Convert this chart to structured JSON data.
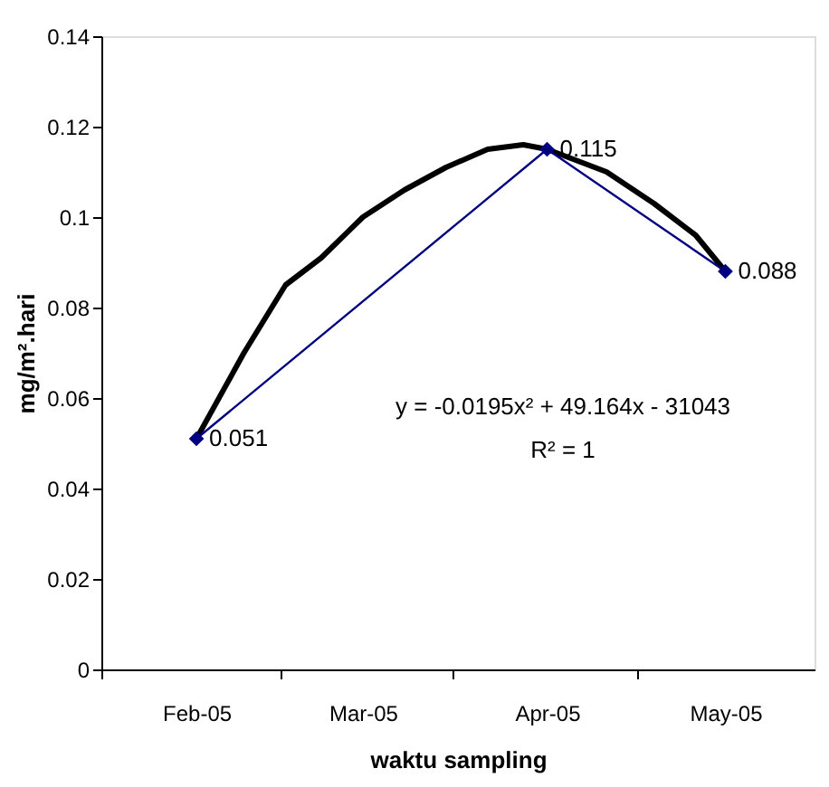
{
  "chart_data": {
    "type": "line",
    "xlabel": "waktu sampling",
    "ylabel": "mg/m².hari",
    "ylim": [
      0,
      0.14
    ],
    "yticks": [
      0,
      0.02,
      0.04,
      0.06,
      0.08,
      0.1,
      0.12,
      0.14
    ],
    "xlim": [
      "2005-01-16",
      "2005-05-16"
    ],
    "xticks": [
      {
        "value": "2005-01-16",
        "label": null
      },
      {
        "value": "2005-02-01",
        "label": "Feb-05"
      },
      {
        "value": "2005-02-15",
        "label": null
      },
      {
        "value": "2005-03-01",
        "label": "Mar-05"
      },
      {
        "value": "2005-03-16",
        "label": null
      },
      {
        "value": "2005-04-01",
        "label": "Apr-05"
      },
      {
        "value": "2005-04-16",
        "label": null
      },
      {
        "value": "2005-05-01",
        "label": "May-05"
      }
    ],
    "grid": false,
    "series": [
      {
        "color": "#000000",
        "marker": "none",
        "x": [
          "2005-02-01",
          "2005-02-09",
          "2005-02-16",
          "2005-02-22",
          "2005-03-01",
          "2005-03-08",
          "2005-03-15",
          "2005-03-22",
          "2005-03-28",
          "2005-04-01",
          "2005-04-11",
          "2005-04-19",
          "2005-04-26",
          "2005-05-01"
        ],
        "values": [
          0.051,
          0.07,
          0.085,
          0.091,
          0.1,
          0.106,
          0.111,
          0.115,
          0.116,
          0.115,
          0.11,
          0.103,
          0.096,
          0.088
        ]
      },
      {
        "color": "#000080",
        "marker": "diamond",
        "x": [
          "2005-02-01",
          "2005-04-01",
          "2005-05-01"
        ],
        "values": [
          0.051,
          0.115,
          0.088
        ],
        "value_labels": [
          "0.051",
          "0.115",
          "0.088"
        ]
      }
    ],
    "annotations": [
      "y = -0.0195x² + 49.164x - 31043",
      "R² = 1"
    ]
  }
}
